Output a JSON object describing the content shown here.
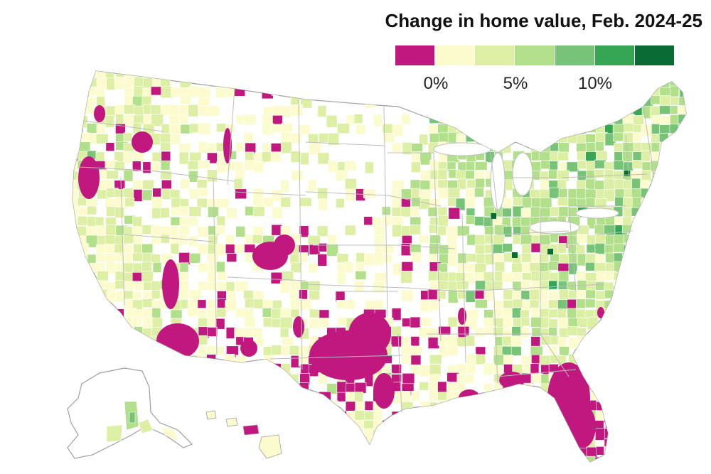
{
  "map": {
    "title": "Change in home value, Feb. 2024-25",
    "legend": {
      "colors": [
        "#c0187f",
        "#fbfbce",
        "#dcefa4",
        "#b2df8a",
        "#77c478",
        "#36a554",
        "#0a6b34"
      ],
      "labels": [
        "0%",
        "5%",
        "10%"
      ]
    },
    "no_data_color": "#ffffff",
    "land_color": "#ffffff",
    "border_color": "#bdbdbd",
    "regions": [
      "contiguous-us",
      "alaska",
      "hawaii"
    ]
  }
}
